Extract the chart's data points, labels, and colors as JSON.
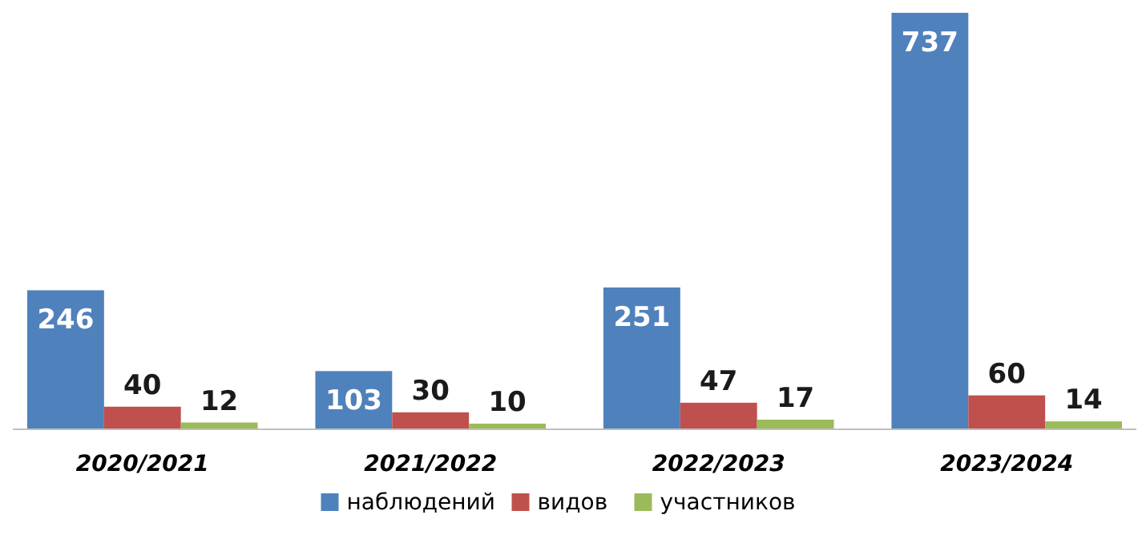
{
  "chart_data": {
    "type": "bar",
    "categories": [
      "2020/2021",
      "2021/2022",
      "2022/2023",
      "2023/2024"
    ],
    "series": [
      {
        "name": "наблюдений",
        "color": "#4f81bd",
        "values": [
          246,
          103,
          251,
          737
        ]
      },
      {
        "name": "видов",
        "color": "#c0504d",
        "values": [
          40,
          30,
          47,
          60
        ]
      },
      {
        "name": "участников",
        "color": "#9bbb59",
        "values": [
          12,
          10,
          17,
          14
        ]
      }
    ],
    "data_labels": true,
    "legend": "bottom",
    "grid": false
  }
}
